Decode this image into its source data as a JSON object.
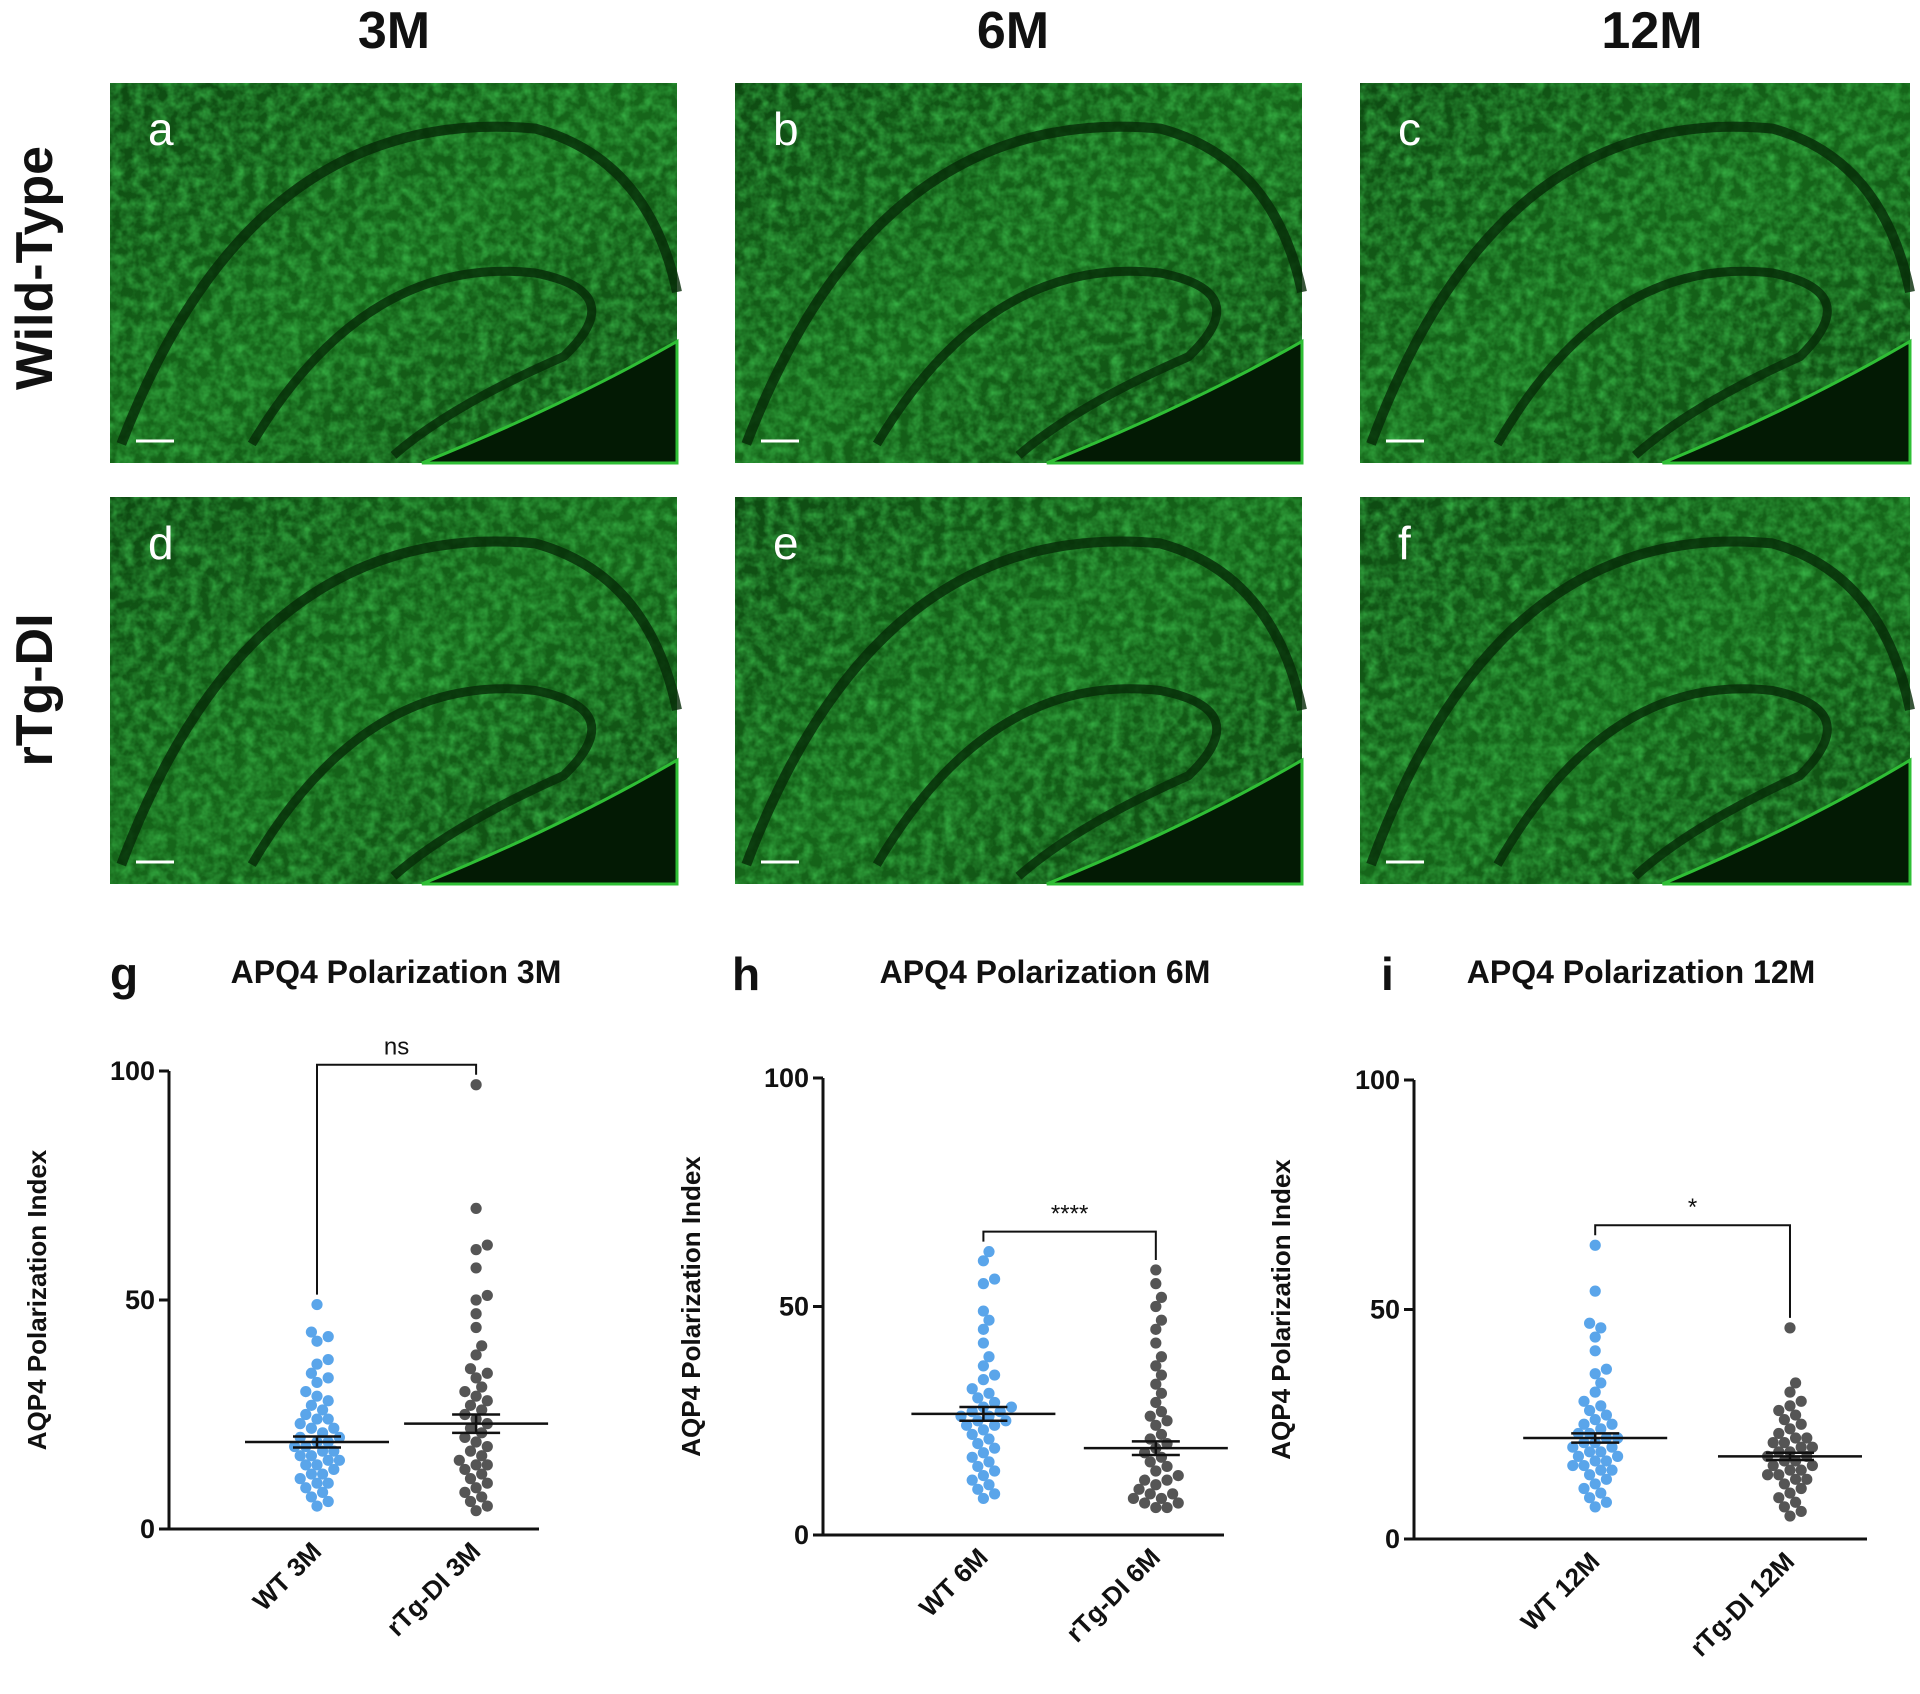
{
  "image_panels": {
    "columns": [
      "3M",
      "6M",
      "12M"
    ],
    "rows": [
      "Wild-Type",
      "rTg-DI"
    ],
    "labels": [
      "a",
      "b",
      "c",
      "d",
      "e",
      "f"
    ]
  },
  "chart_data": [
    {
      "type": "dotplot",
      "panel_label": "g",
      "title": "APQ4 Polarization 3M",
      "ylabel": "AQP4 Polarization Index",
      "categories": [
        "WT 3M",
        "rTg-DI 3M"
      ],
      "colors": [
        "#5aa5ea",
        "#555555"
      ],
      "points": [
        [
          49,
          43,
          42,
          41,
          37,
          36,
          34,
          33,
          32,
          30,
          29,
          28,
          27,
          26,
          25,
          24,
          24,
          23,
          22,
          22,
          21,
          20,
          20,
          19,
          19,
          18,
          18,
          17,
          17,
          16,
          16,
          15,
          15,
          14,
          14,
          13,
          12,
          12,
          11,
          10,
          10,
          9,
          8,
          7,
          6,
          5
        ],
        [
          97,
          70,
          62,
          61,
          57,
          51,
          50,
          47,
          44,
          40,
          38,
          35,
          34,
          33,
          31,
          30,
          29,
          28,
          27,
          26,
          25,
          24,
          23,
          22,
          21,
          20,
          19,
          18,
          17,
          16,
          15,
          14,
          14,
          13,
          12,
          11,
          10,
          9,
          8,
          7,
          6,
          5,
          4
        ]
      ],
      "means": [
        19,
        23
      ],
      "sem": [
        1.2,
        2
      ],
      "significance": "ns",
      "ylim": [
        0,
        100
      ],
      "yticks": [
        0,
        50,
        100
      ]
    },
    {
      "type": "dotplot",
      "panel_label": "h",
      "title": "APQ4 Polarization 6M",
      "ylabel": "AQP4 Polarization Index",
      "categories": [
        "WT 6M",
        "rTg-DI 6M"
      ],
      "colors": [
        "#5aa5ea",
        "#555555"
      ],
      "points": [
        [
          62,
          60,
          56,
          55,
          49,
          47,
          45,
          42,
          39,
          37,
          35,
          34,
          32,
          31,
          30,
          29,
          28,
          28,
          27,
          27,
          26,
          26,
          25,
          25,
          24,
          24,
          23,
          22,
          21,
          20,
          19,
          18,
          17,
          16,
          15,
          14,
          13,
          12,
          11,
          10,
          9,
          8
        ],
        [
          58,
          55,
          52,
          50,
          47,
          45,
          42,
          39,
          37,
          35,
          33,
          31,
          29,
          27,
          26,
          25,
          24,
          22,
          21,
          20,
          19,
          18,
          17,
          16,
          15,
          14,
          13,
          12,
          12,
          11,
          10,
          9,
          9,
          8,
          8,
          7,
          7,
          6,
          6
        ]
      ],
      "means": [
        26.5,
        19
      ],
      "sem": [
        1.5,
        1.5
      ],
      "significance": "****",
      "ylim": [
        0,
        100
      ],
      "yticks": [
        0,
        50,
        100
      ]
    },
    {
      "type": "dotplot",
      "panel_label": "i",
      "title": "APQ4 Polarization 12M",
      "ylabel": "AQP4 Polarization Index",
      "categories": [
        "WT 12M",
        "rTg-DI 12M"
      ],
      "colors": [
        "#5aa5ea",
        "#555555"
      ],
      "points": [
        [
          64,
          54,
          47,
          46,
          44,
          41,
          37,
          36,
          34,
          32,
          30,
          29,
          28,
          27,
          26,
          25,
          25,
          24,
          23,
          23,
          22,
          22,
          21,
          21,
          20,
          20,
          19,
          19,
          18,
          18,
          17,
          17,
          16,
          16,
          15,
          15,
          14,
          13,
          12,
          11,
          10,
          9,
          8,
          7
        ],
        [
          46,
          34,
          32,
          30,
          29,
          28,
          27,
          26,
          25,
          24,
          23,
          22,
          22,
          21,
          21,
          20,
          20,
          19,
          19,
          18,
          18,
          17,
          17,
          16,
          16,
          15,
          15,
          14,
          14,
          13,
          13,
          12,
          11,
          10,
          9,
          8,
          7,
          6,
          5
        ]
      ],
      "means": [
        22,
        18
      ],
      "sem": [
        1,
        0.8
      ],
      "significance": "*",
      "ylim": [
        0,
        100
      ],
      "yticks": [
        0,
        50,
        100
      ]
    }
  ]
}
